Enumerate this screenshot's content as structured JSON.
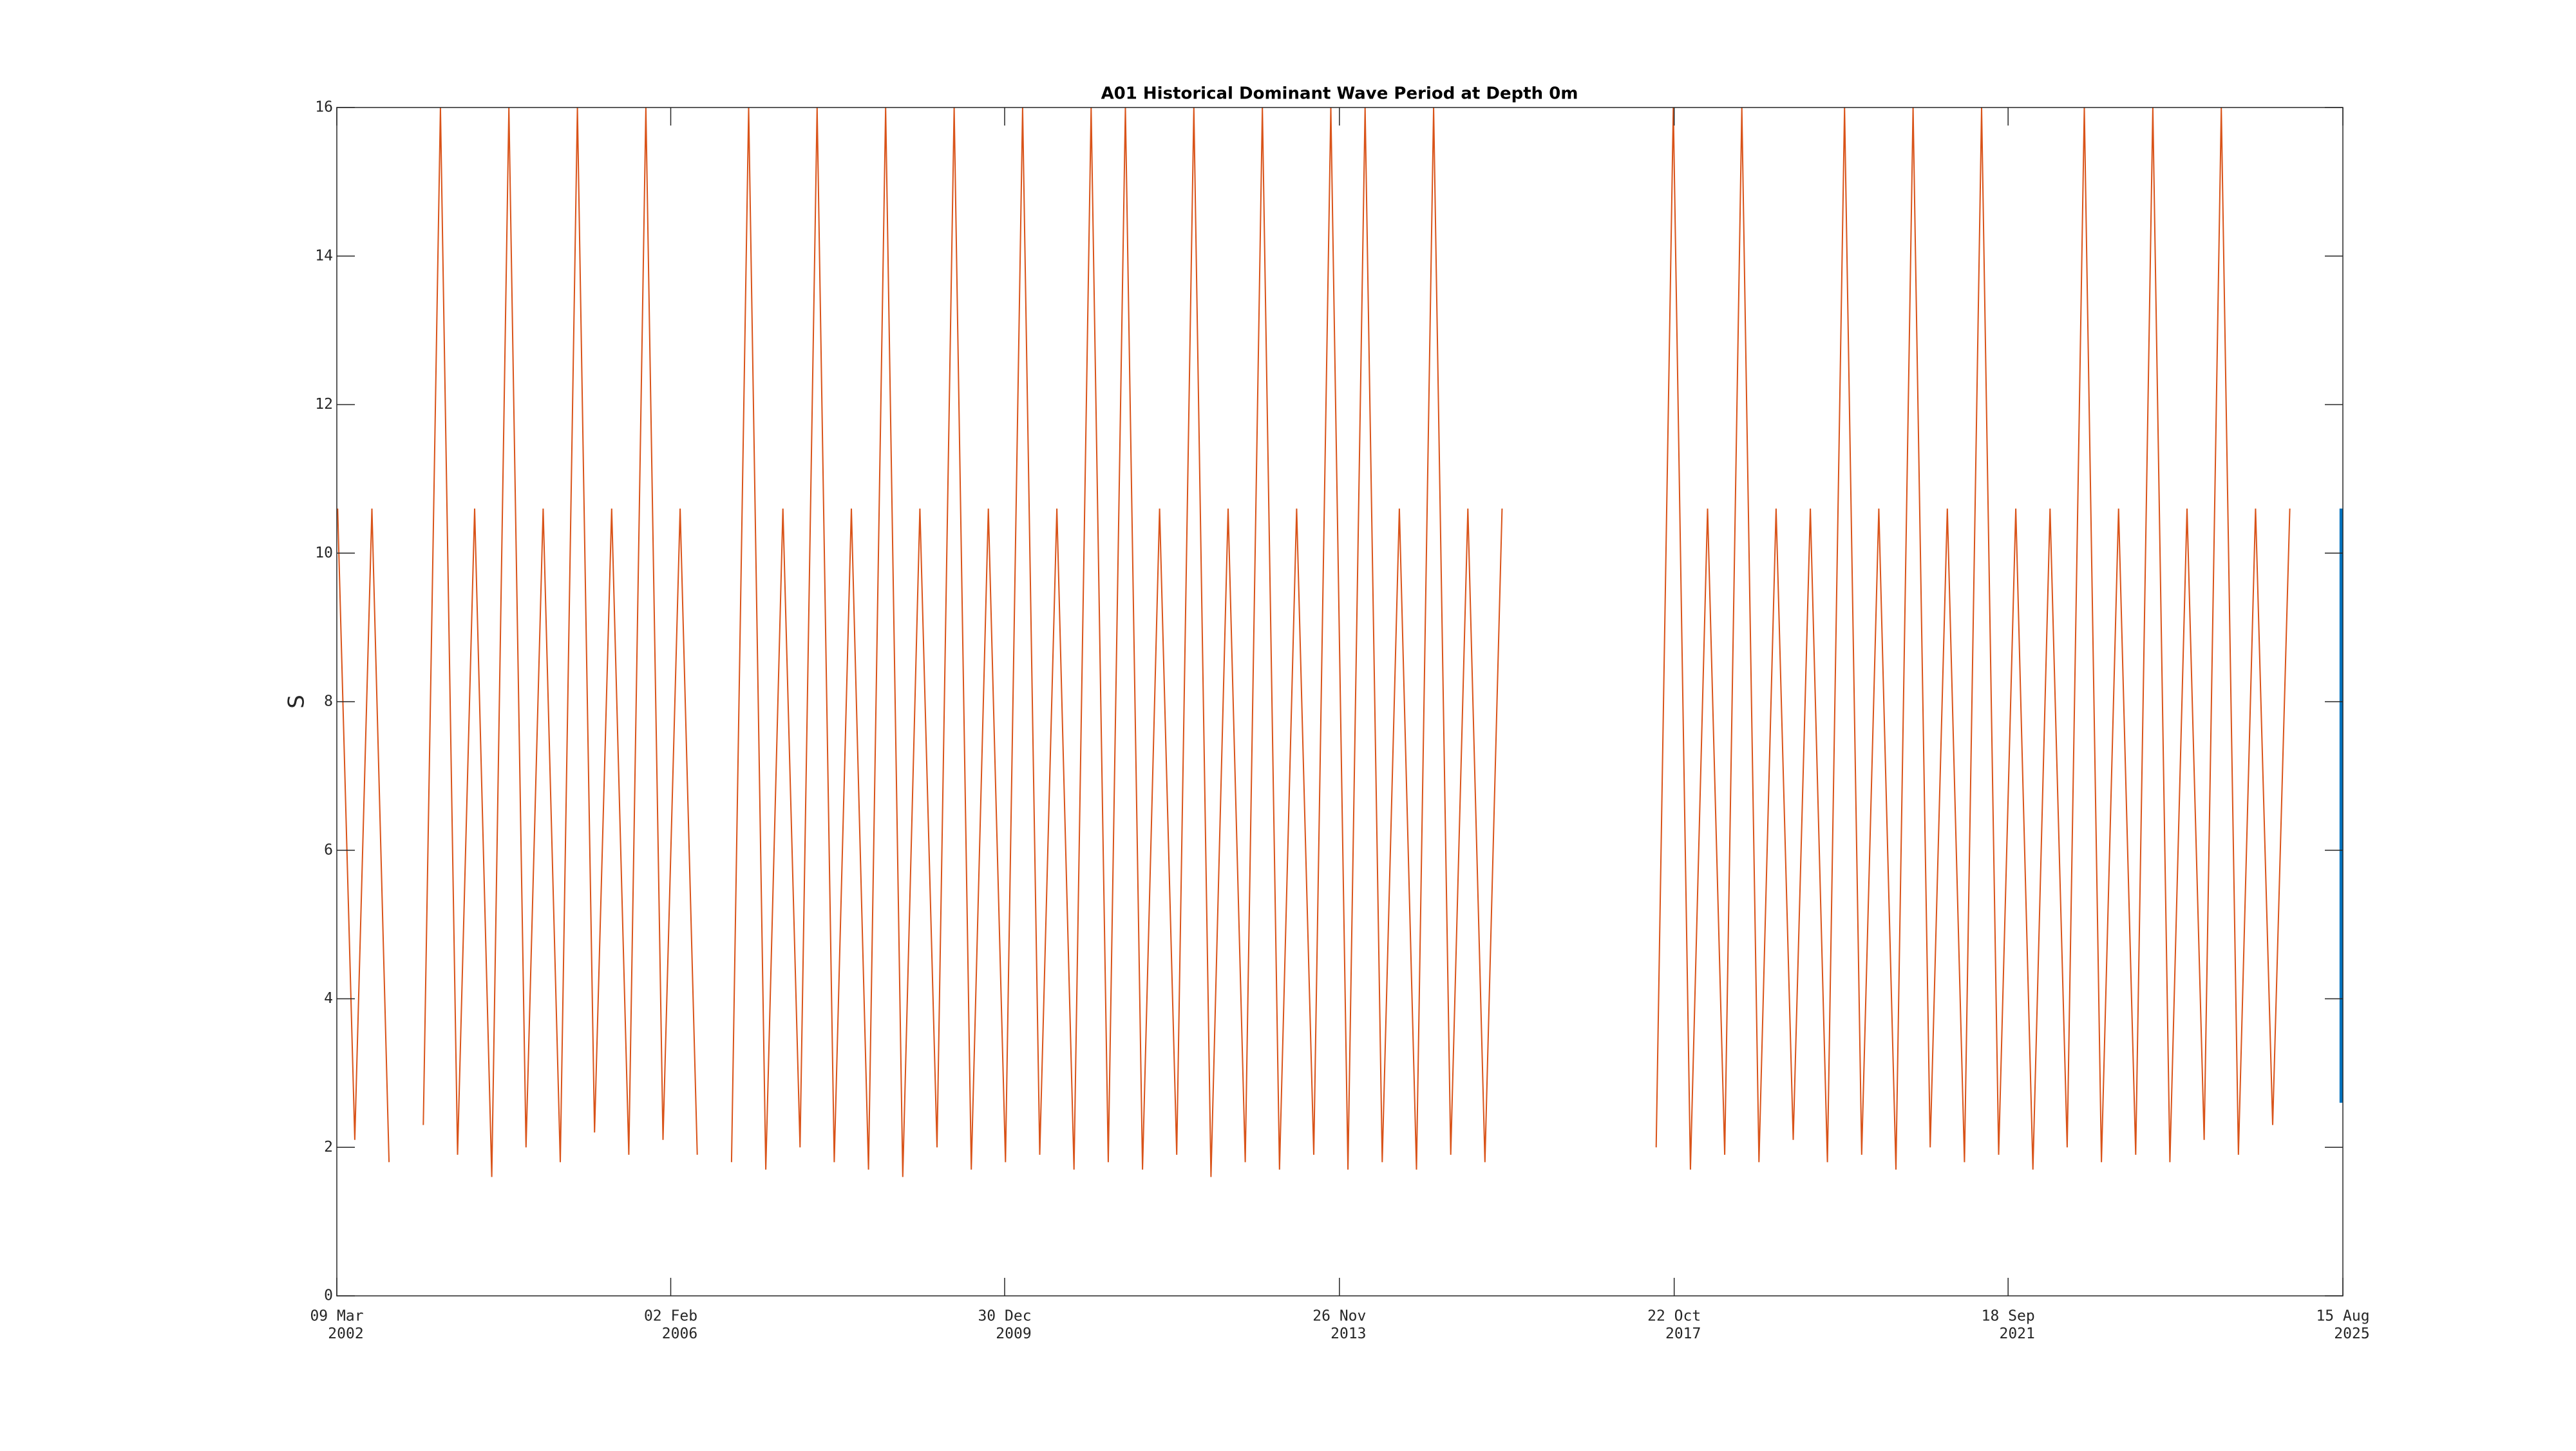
{
  "chart_data": {
    "type": "line",
    "title": "A01 Historical Dominant Wave Period at Depth 0m",
    "y_label": "S",
    "xlim": [
      2002.19,
      2025.62
    ],
    "xticks": [
      {
        "value": 2002.19,
        "label": "09 Mar 2002"
      },
      {
        "value": 2006.09,
        "label": "02 Feb 2006"
      },
      {
        "value": 2009.99,
        "label": "30 Dec 2009"
      },
      {
        "value": 2013.9,
        "label": "26 Nov 2013"
      },
      {
        "value": 2017.81,
        "label": "22 Oct 2017"
      },
      {
        "value": 2021.71,
        "label": "18 Sep 2021"
      },
      {
        "value": 2025.62,
        "label": "15 Aug 2025"
      }
    ],
    "ylim": [
      0,
      16
    ],
    "yticks": [
      0,
      2,
      4,
      6,
      8,
      10,
      12,
      14,
      16
    ],
    "series": [
      {
        "color": "#d95319",
        "x": [
          2002.2,
          2002.4,
          2002.6,
          2002.8,
          2003,
          2003.2,
          2003.4,
          2003.6,
          2003.8,
          2004,
          2004.2,
          2004.4,
          2004.6,
          2004.8,
          2005,
          2005.2,
          2005.4,
          2005.6,
          2005.8,
          2006,
          2006.2,
          2006.4,
          2006.6,
          2006.8,
          2007,
          2007.2,
          2007.4,
          2007.6,
          2007.8,
          2008,
          2008.2,
          2008.4,
          2008.6,
          2008.8,
          2009,
          2009.2,
          2009.4,
          2009.6,
          2009.8,
          2010,
          2010.2,
          2010.4,
          2010.6,
          2010.8,
          2011,
          2011.2,
          2011.4,
          2011.6,
          2011.8,
          2012,
          2012.2,
          2012.4,
          2012.6,
          2012.8,
          2013,
          2013.2,
          2013.4,
          2013.6,
          2013.8,
          2014,
          2014.2,
          2014.4,
          2014.6,
          2014.8,
          2015,
          2015.2,
          2015.4,
          2015.6,
          2015.8,
          2016.6,
          2017.6,
          2017.8,
          2018,
          2018.2,
          2018.4,
          2018.6,
          2018.8,
          2019,
          2019.2,
          2019.4,
          2019.6,
          2019.8,
          2020,
          2020.2,
          2020.4,
          2020.6,
          2020.8,
          2021,
          2021.2,
          2021.4,
          2021.6,
          2021.8,
          2022,
          2022.2,
          2022.4,
          2022.6,
          2022.8,
          2023,
          2023.2,
          2023.4,
          2023.6,
          2023.8,
          2024,
          2024.2,
          2024.4,
          2024.6,
          2024.8,
          2025
        ],
        "values": [
          10.6,
          2.1,
          10.6,
          1.8,
          null,
          2.3,
          16,
          1.9,
          10.6,
          1.6,
          16,
          2.0,
          10.6,
          1.8,
          16,
          2.2,
          10.6,
          1.9,
          16,
          2.1,
          10.6,
          1.9,
          null,
          1.8,
          16,
          1.7,
          10.6,
          2.0,
          16,
          1.8,
          10.6,
          1.7,
          16,
          1.6,
          10.6,
          2.0,
          16,
          1.7,
          10.6,
          1.8,
          16,
          1.9,
          10.6,
          1.7,
          16,
          1.8,
          16,
          1.7,
          10.6,
          1.9,
          16,
          1.6,
          10.6,
          1.8,
          16,
          1.7,
          10.6,
          1.9,
          16,
          1.7,
          16,
          1.8,
          10.6,
          1.7,
          16,
          1.9,
          10.6,
          1.8,
          10.6,
          null,
          2.0,
          16,
          1.7,
          10.6,
          1.9,
          16,
          1.8,
          10.6,
          2.1,
          10.6,
          1.8,
          16,
          1.9,
          10.6,
          1.7,
          16,
          2.0,
          10.6,
          1.8,
          16,
          1.9,
          10.6,
          1.7,
          10.6,
          2.0,
          16,
          1.8,
          10.6,
          1.9,
          16,
          1.8,
          10.6,
          2.1,
          16,
          1.9,
          10.6,
          2.3,
          10.6
        ]
      },
      {
        "color": "#0072bd",
        "x": [
          2025.6,
          2025.6,
          2025.6,
          2025.6
        ],
        "values": [
          10.6,
          2.6,
          6.4,
          3.5
        ]
      }
    ]
  }
}
